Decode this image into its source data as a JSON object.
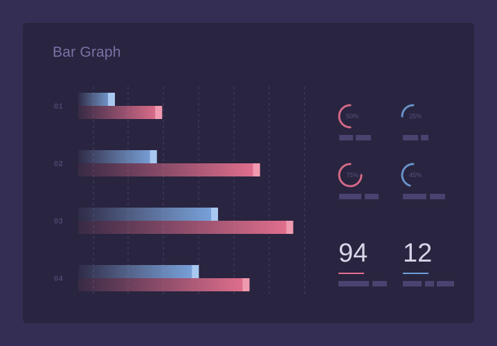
{
  "title": "Bar Graph",
  "chart_data": {
    "type": "bar",
    "orientation": "horizontal",
    "title": "Bar Graph",
    "categories": [
      "01",
      "02",
      "03",
      "04"
    ],
    "series": [
      {
        "values": [
          10.5,
          22.5,
          40,
          34.5
        ],
        "color": "#8fb6e8"
      },
      {
        "values": [
          24,
          52,
          61.5,
          49
        ],
        "color": "#e5718f"
      }
    ],
    "xlim": [
      0,
      65
    ],
    "grid": true
  },
  "gauges": [
    {
      "label": "50%",
      "value": 0.5,
      "color": "#e5718f"
    },
    {
      "label": "25%",
      "value": 0.25,
      "color": "#6f9fd8"
    },
    {
      "label": "75%",
      "value": 0.75,
      "color": "#e5718f"
    },
    {
      "label": "45%",
      "value": 0.45,
      "color": "#6f9fd8"
    }
  ],
  "stats": [
    {
      "value": "94",
      "color": "#e5718f"
    },
    {
      "value": "12",
      "color": "#6f9fd8"
    }
  ]
}
